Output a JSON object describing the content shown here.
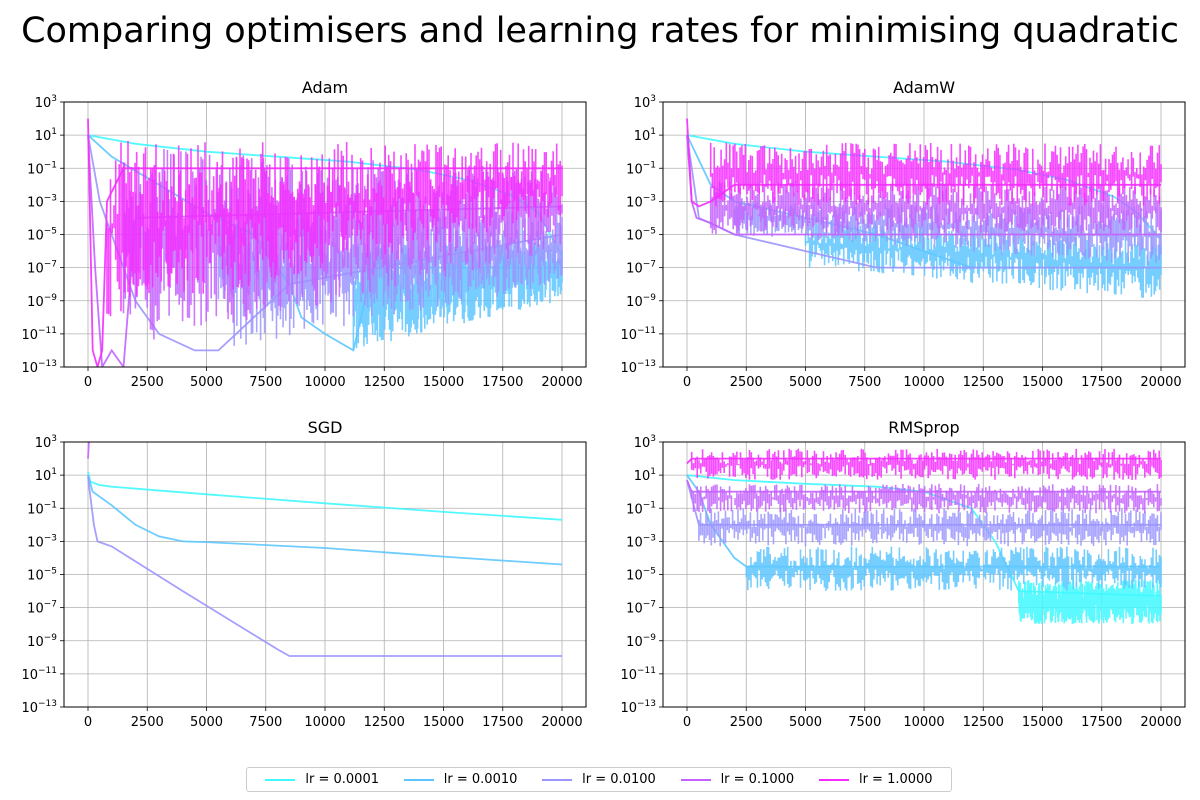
{
  "figure": {
    "title": "Comparing optimisers and learning rates for minimising quadratic"
  },
  "legend": {
    "items": [
      {
        "label": "lr = 0.0001",
        "color": "#40f8ff"
      },
      {
        "label": "lr = 0.0010",
        "color": "#5ec6ff"
      },
      {
        "label": "lr = 0.0100",
        "color": "#9b95fe"
      },
      {
        "label": "lr = 0.1000",
        "color": "#c462ff"
      },
      {
        "label": "lr = 1.0000",
        "color": "#f52cff"
      }
    ]
  },
  "chart_data": [
    {
      "type": "line",
      "title": "Adam",
      "xlim": [
        0,
        20000
      ],
      "ylim": [
        1e-13,
        1000
      ],
      "yscale": "log",
      "grid": true,
      "x_ticks": [
        "0",
        "2500",
        "5000",
        "7500",
        "10000",
        "12500",
        "15000",
        "17500",
        "20000"
      ],
      "y_ticks": [
        "10^3",
        "10^1",
        "10^-1",
        "10^-3",
        "10^-5",
        "10^-7",
        "10^-9",
        "10^-11",
        "10^-13"
      ],
      "series": [
        {
          "name": "lr = 0.0001",
          "color": "#40f8ff",
          "x": [
            0,
            2000,
            5000,
            8000,
            11000,
            14000,
            16000,
            18000,
            19000,
            20000
          ],
          "y": [
            10,
            3,
            1,
            0.5,
            0.25,
            0.08,
            0.02,
            0.002,
            0.0002,
            5e-07
          ]
        },
        {
          "name": "lr = 0.0010",
          "color": "#5ec6ff",
          "x": [
            0,
            1000,
            3000,
            5000,
            7000,
            8500,
            9000,
            10000,
            11200,
            12000,
            14000,
            17000,
            20000
          ],
          "y": [
            10,
            0.5,
            0.01,
            0.0002,
            1e-05,
            1e-08,
            1e-10,
            1e-11,
            1e-12,
            1e-07,
            1e-07,
            1e-07,
            1e-07
          ],
          "band_x": [
            11200,
            20000
          ],
          "band_low": [
            1e-12,
            1e-09
          ],
          "band_high": [
            2e-06,
            5e-06
          ]
        },
        {
          "name": "lr = 0.0100",
          "color": "#9b95fe",
          "x": [
            0,
            500,
            2000,
            3000,
            4500,
            5500,
            8500,
            20000
          ],
          "y": [
            10,
            0.001,
            1e-09,
            1e-11,
            1e-12,
            1e-12,
            1e-08,
            1e-05
          ],
          "band_x": [
            5500,
            20000
          ],
          "band_low": [
            1e-12,
            1e-08
          ],
          "band_high": [
            0.001,
            0.0002
          ]
        },
        {
          "name": "lr = 0.1000",
          "color": "#c462ff",
          "x": [
            0,
            300,
            600,
            1000,
            1500,
            2000,
            20000
          ],
          "y": [
            10,
            1e-07,
            1e-13,
            1e-12,
            1e-13,
            0.0001,
            0.0005
          ],
          "band_x": [
            1500,
            20000
          ],
          "band_low": [
            1e-12,
            1e-06
          ],
          "band_high": [
            2,
            0.1
          ]
        },
        {
          "name": "lr = 1.0000",
          "color": "#f52cff",
          "x": [
            0,
            200,
            400,
            600,
            800,
            1500,
            20000
          ],
          "y": [
            100,
            1e-12,
            1e-13,
            1e-12,
            0.001,
            0.1,
            0.1
          ],
          "band_x": [
            800,
            20000
          ],
          "band_low": [
            1e-10,
            0.0001
          ],
          "band_high": [
            5,
            4
          ]
        }
      ]
    },
    {
      "type": "line",
      "title": "AdamW",
      "xlim": [
        0,
        20000
      ],
      "ylim": [
        1e-13,
        1000
      ],
      "yscale": "log",
      "grid": true,
      "x_ticks": [
        "0",
        "2500",
        "5000",
        "7500",
        "10000",
        "12500",
        "15000",
        "17500",
        "20000"
      ],
      "y_ticks": [
        "10^3",
        "10^1",
        "10^-1",
        "10^-3",
        "10^-5",
        "10^-7",
        "10^-9",
        "10^-11",
        "10^-13"
      ],
      "series": [
        {
          "name": "lr = 0.0001",
          "color": "#40f8ff",
          "x": [
            0,
            2000,
            5000,
            8000,
            11000,
            14000,
            16000,
            18000,
            19000,
            20000
          ],
          "y": [
            10,
            3,
            1,
            0.5,
            0.25,
            0.08,
            0.02,
            0.002,
            0.0002,
            5e-06
          ]
        },
        {
          "name": "lr = 0.0010",
          "color": "#5ec6ff",
          "x": [
            0,
            1000,
            2000,
            5000,
            8000,
            10000,
            12000,
            15000,
            20000
          ],
          "y": [
            10,
            0.01,
            0.001,
            0.0001,
            1e-05,
            1e-06,
            1e-07,
            1e-07,
            1e-07
          ],
          "band_x": [
            5000,
            20000
          ],
          "band_low": [
            1e-07,
            1e-09
          ],
          "band_high": [
            0.0001,
            1e-05
          ]
        },
        {
          "name": "lr = 0.0100",
          "color": "#9b95fe",
          "x": [
            0,
            500,
            2000,
            5000,
            8000,
            10000,
            15000,
            20000
          ],
          "y": [
            10,
            0.0001,
            1e-05,
            1e-06,
            1e-07,
            1e-07,
            1e-07,
            1e-07
          ],
          "band_x": [
            2000,
            20000
          ],
          "band_low": [
            1e-05,
            1e-07
          ],
          "band_high": [
            0.001,
            0.0005
          ]
        },
        {
          "name": "lr = 0.1000",
          "color": "#c462ff",
          "x": [
            0,
            200,
            400,
            1000,
            2000,
            5000,
            10000,
            20000
          ],
          "y": [
            10,
            0.001,
            0.0001,
            5e-05,
            1e-05,
            1e-05,
            1e-05,
            1e-05
          ],
          "band_x": [
            1000,
            20000
          ],
          "band_low": [
            1e-05,
            1e-05
          ],
          "band_high": [
            0.02,
            0.01
          ]
        },
        {
          "name": "lr = 1.0000",
          "color": "#f52cff",
          "x": [
            0,
            200,
            500,
            1000,
            2000,
            20000
          ],
          "y": [
            100,
            0.001,
            0.0005,
            0.001,
            0.01,
            0.01
          ],
          "band_x": [
            1000,
            20000
          ],
          "band_low": [
            0.0005,
            0.0005
          ],
          "band_high": [
            4,
            3
          ]
        }
      ]
    },
    {
      "type": "line",
      "title": "SGD",
      "xlim": [
        0,
        20000
      ],
      "ylim": [
        1e-13,
        1000
      ],
      "yscale": "log",
      "grid": true,
      "x_ticks": [
        "0",
        "2500",
        "5000",
        "7500",
        "10000",
        "12500",
        "15000",
        "17500",
        "20000"
      ],
      "y_ticks": [
        "10^3",
        "10^1",
        "10^-1",
        "10^-3",
        "10^-5",
        "10^-7",
        "10^-9",
        "10^-11",
        "10^-13"
      ],
      "series": [
        {
          "name": "lr = 0.0001",
          "color": "#40f8ff",
          "x": [
            0,
            100,
            500,
            1000,
            5000,
            10000,
            15000,
            20000
          ],
          "y": [
            15,
            4,
            2.5,
            2,
            0.7,
            0.2,
            0.06,
            0.02
          ]
        },
        {
          "name": "lr = 0.0010",
          "color": "#5ec6ff",
          "x": [
            0,
            200,
            1000,
            2000,
            3000,
            4000,
            5000,
            10000,
            15000,
            20000
          ],
          "y": [
            10,
            1,
            0.15,
            0.01,
            0.002,
            0.001,
            0.0009,
            0.0004,
            0.00012,
            4e-05
          ]
        },
        {
          "name": "lr = 0.0100",
          "color": "#9b95fe",
          "x": [
            0,
            100,
            250,
            400,
            1000,
            4000,
            8000,
            8500,
            20000
          ],
          "y": [
            8,
            0.5,
            0.01,
            0.001,
            0.0005,
            1e-06,
            3e-10,
            1.2e-10,
            1.2e-10
          ]
        },
        {
          "name": "lr = 0.1000",
          "color": "#c462ff",
          "x": [
            0,
            40
          ],
          "y": [
            100,
            1000
          ]
        },
        {
          "name": "lr = 1.0000",
          "color": "#f52cff",
          "x": [
            0,
            20
          ],
          "y": [
            1000,
            1000
          ]
        }
      ]
    },
    {
      "type": "line",
      "title": "RMSprop",
      "xlim": [
        0,
        20000
      ],
      "ylim": [
        1e-13,
        1000
      ],
      "yscale": "log",
      "grid": true,
      "x_ticks": [
        "0",
        "2500",
        "5000",
        "7500",
        "10000",
        "12500",
        "15000",
        "17500",
        "20000"
      ],
      "y_ticks": [
        "10^3",
        "10^1",
        "10^-1",
        "10^-3",
        "10^-5",
        "10^-7",
        "10^-9",
        "10^-11",
        "10^-13"
      ],
      "series": [
        {
          "name": "lr = 0.0001",
          "color": "#40f8ff",
          "x": [
            0,
            2000,
            5000,
            8000,
            10000,
            12000,
            13000,
            14000,
            20000
          ],
          "y": [
            10,
            5,
            3,
            2,
            1,
            0.1,
            0.001,
            1e-06,
            5e-07
          ],
          "band_x": [
            14000,
            20000
          ],
          "band_low": [
            1e-08,
            1e-08
          ],
          "band_high": [
            5e-06,
            5e-06
          ]
        },
        {
          "name": "lr = 0.0010",
          "color": "#5ec6ff",
          "x": [
            0,
            500,
            1000,
            2000,
            2500,
            20000
          ],
          "y": [
            10,
            1,
            0.01,
            0.0001,
            3e-05,
            3e-05
          ],
          "band_x": [
            2500,
            20000
          ],
          "band_low": [
            1e-06,
            1e-06
          ],
          "band_high": [
            0.0005,
            0.0005
          ]
        },
        {
          "name": "lr = 0.0100",
          "color": "#9b95fe",
          "x": [
            0,
            500,
            1000,
            20000
          ],
          "y": [
            5,
            0.01,
            0.01,
            0.01
          ],
          "band_x": [
            500,
            20000
          ],
          "band_low": [
            0.0005,
            0.0005
          ],
          "band_high": [
            0.1,
            0.1
          ]
        },
        {
          "name": "lr = 0.1000",
          "color": "#c462ff",
          "x": [
            0,
            200,
            20000
          ],
          "y": [
            5,
            1,
            1
          ],
          "band_x": [
            200,
            20000
          ],
          "band_low": [
            0.05,
            0.05
          ],
          "band_high": [
            3,
            3
          ]
        },
        {
          "name": "lr = 1.0000",
          "color": "#f52cff",
          "x": [
            0,
            200,
            20000
          ],
          "y": [
            50,
            100,
            100
          ],
          "band_x": [
            200,
            20000
          ],
          "band_low": [
            5,
            5
          ],
          "band_high": [
            400,
            400
          ]
        }
      ]
    }
  ]
}
